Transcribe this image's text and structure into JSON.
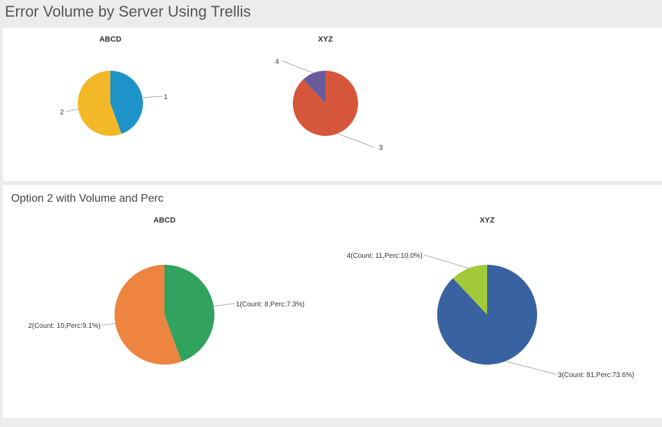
{
  "page": {
    "title": "Error Volume by Server Using Trellis"
  },
  "panel2": {
    "title": "Option 2 with Volume and Perc"
  },
  "chart_data": [
    {
      "type": "pie",
      "title": "ABCD",
      "slices": [
        {
          "label": "1",
          "value": 8,
          "color": "#1e93c8"
        },
        {
          "label": "2",
          "value": 10,
          "color": "#f2b827"
        }
      ]
    },
    {
      "type": "pie",
      "title": "XYZ",
      "slices": [
        {
          "label": "3",
          "value": 81,
          "color": "#d6563c"
        },
        {
          "label": "4",
          "value": 11,
          "color": "#6a5a9c"
        }
      ]
    },
    {
      "type": "pie",
      "title": "ABCD",
      "slices": [
        {
          "label": "1(Count: 8,Perc:7.3%)",
          "value": 8,
          "color": "#31a35f"
        },
        {
          "label": "2(Count: 10,Perc:9.1%)",
          "value": 10,
          "color": "#ed8440"
        }
      ]
    },
    {
      "type": "pie",
      "title": "XYZ",
      "slices": [
        {
          "label": "3(Count: 81,Perc:73.6%)",
          "value": 81,
          "color": "#3863a0"
        },
        {
          "label": "4(Count: 11,Perc:10.0%)",
          "value": 11,
          "color": "#a2c93a"
        }
      ]
    }
  ]
}
